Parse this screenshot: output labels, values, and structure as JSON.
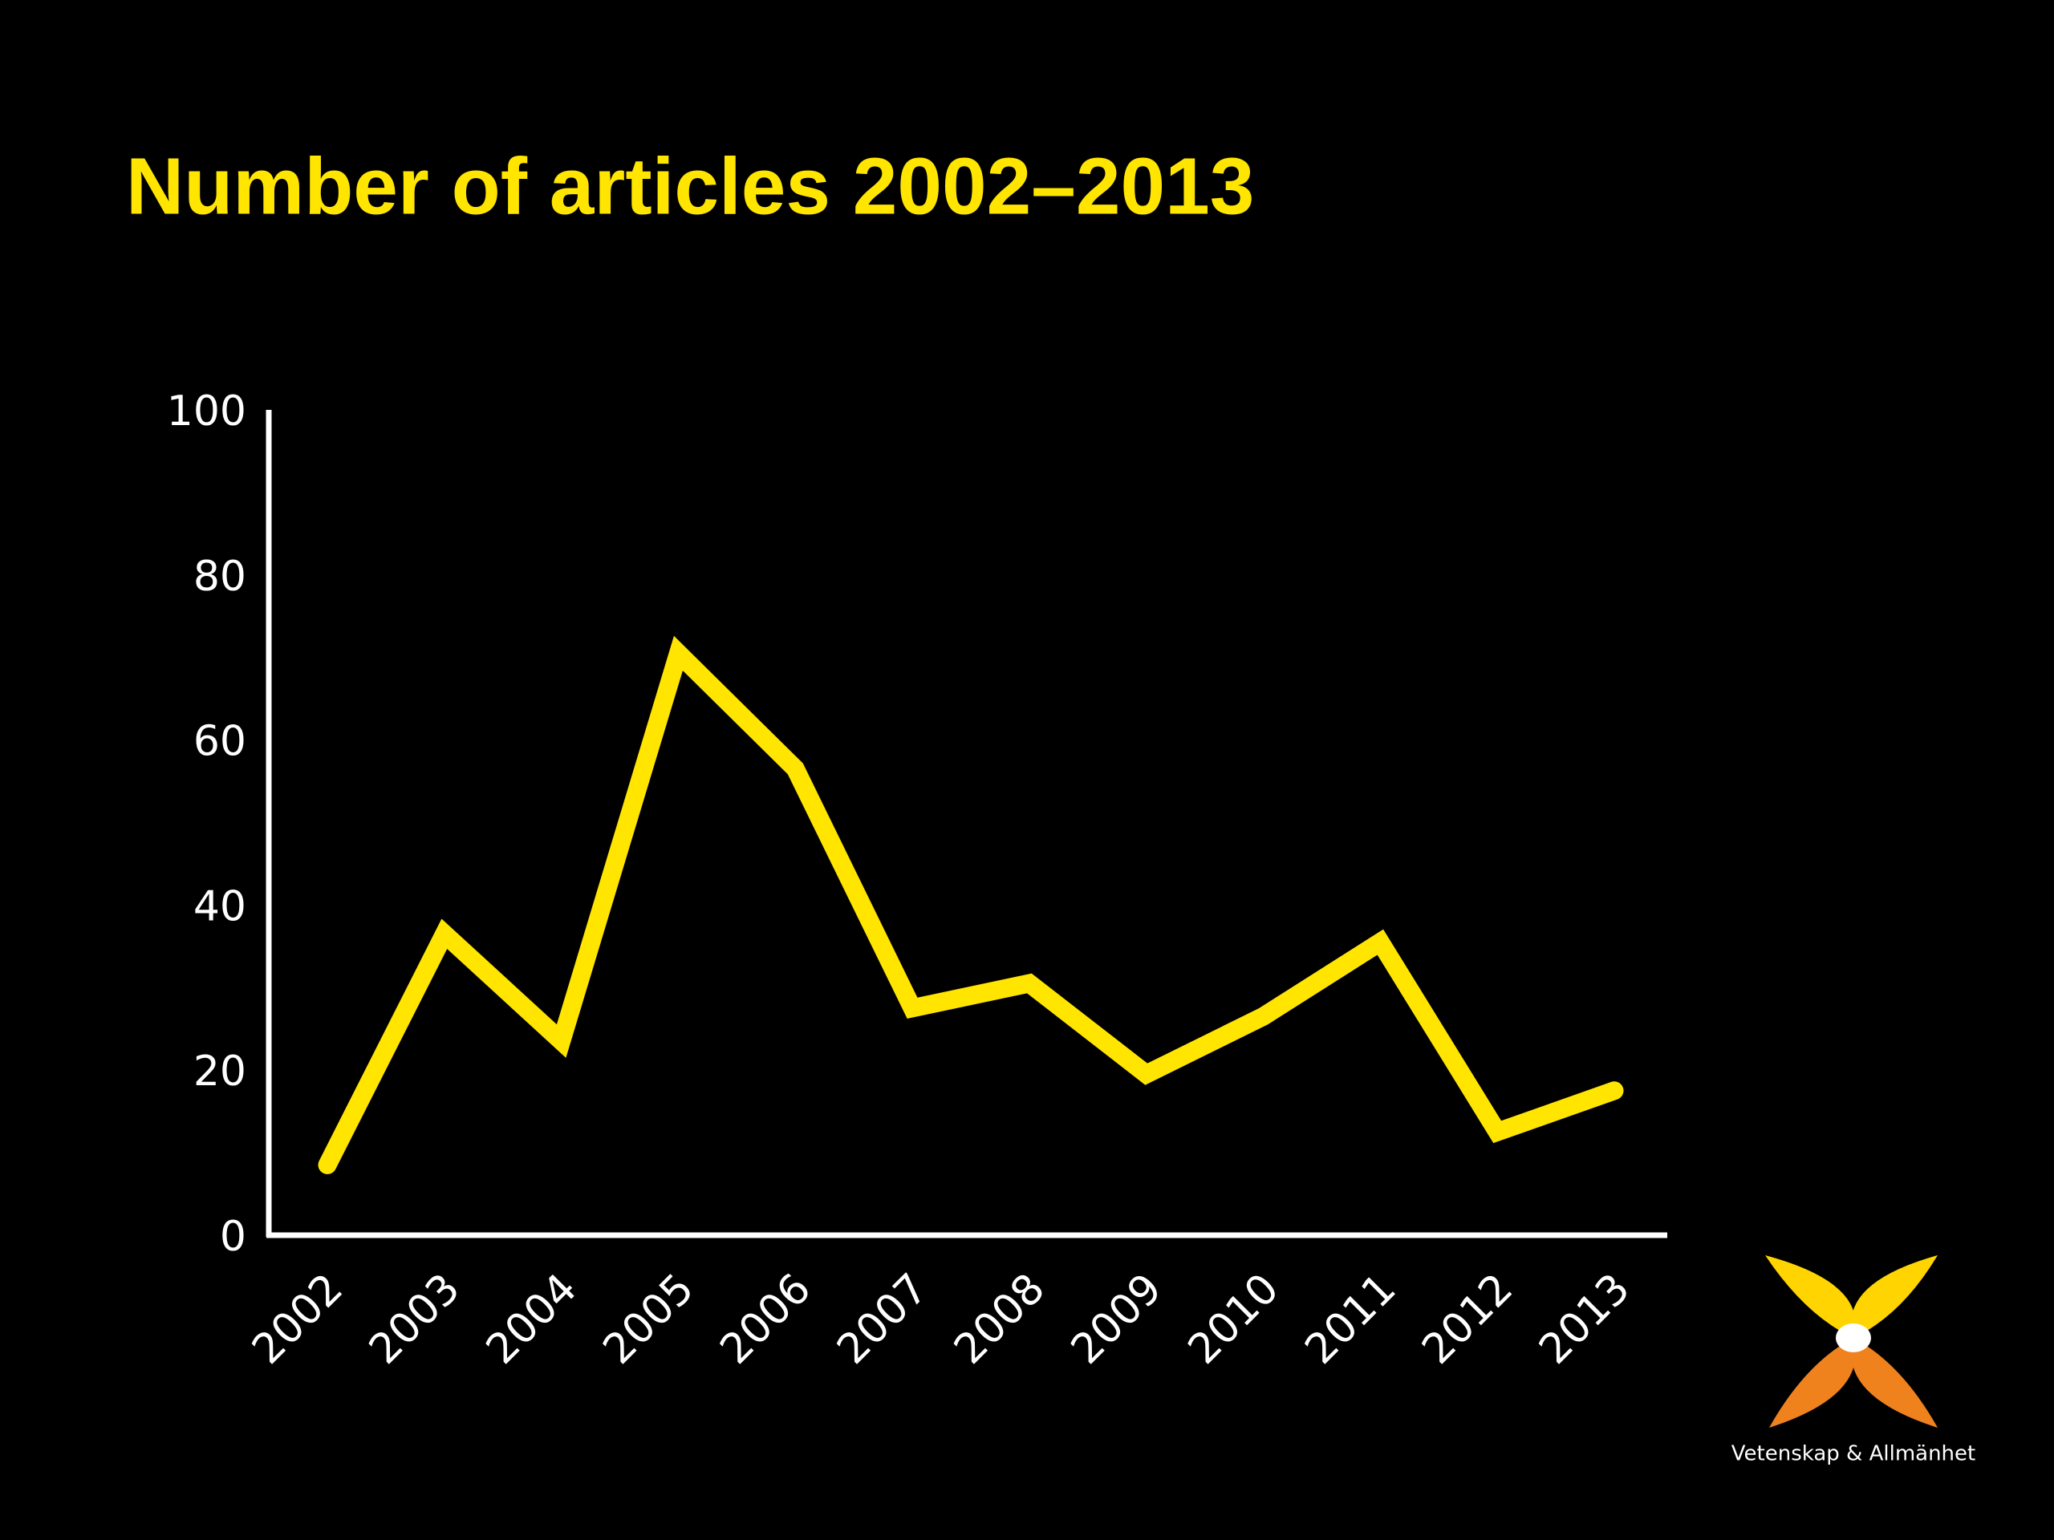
{
  "chart_data": {
    "type": "line",
    "title": "Number of articles 2002–2013",
    "categories": [
      "2002",
      "2003",
      "2004",
      "2005",
      "2006",
      "2007",
      "2008",
      "2009",
      "2010",
      "2011",
      "2012",
      "2013"
    ],
    "series": [
      {
        "name": null,
        "color": "#ffe500",
        "values": [
          9,
          37,
          24,
          71,
          57,
          28,
          31,
          20,
          27,
          36,
          13,
          18
        ]
      }
    ],
    "ylim": [
      0,
      100
    ],
    "yticks": [
      0,
      20,
      40,
      60,
      80,
      100
    ],
    "grid": false
  },
  "logo": {
    "text": "Vetenskap & Allmänhet"
  }
}
